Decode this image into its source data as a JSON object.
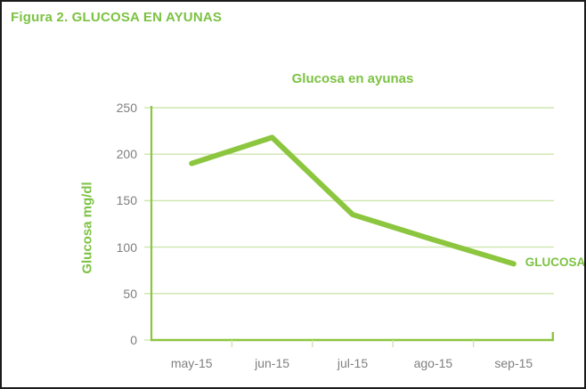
{
  "figure": {
    "title": "Figura 2. GLUCOSA EN AYUNAS"
  },
  "chart_data": {
    "type": "line",
    "title": "Glucosa en ayunas",
    "xlabel": "",
    "ylabel": "Glucosa mg/dl",
    "categories": [
      "may-15",
      "jun-15",
      "jul-15",
      "ago-15",
      "sep-15"
    ],
    "series": [
      {
        "name": "GLUCOSA",
        "values": [
          190,
          218,
          135,
          108,
          82
        ]
      }
    ],
    "ylim": [
      0,
      250
    ],
    "yticks": [
      0,
      50,
      100,
      150,
      200,
      250
    ],
    "grid": true,
    "legend_position": "end-of-line",
    "colors": {
      "line": "#8CC63F",
      "axis": "#8CC63F",
      "grid": "#CDE6AE",
      "text_green": "#7CC242",
      "tick_label": "#7F7F7F",
      "border": "#1B1B1B"
    }
  }
}
